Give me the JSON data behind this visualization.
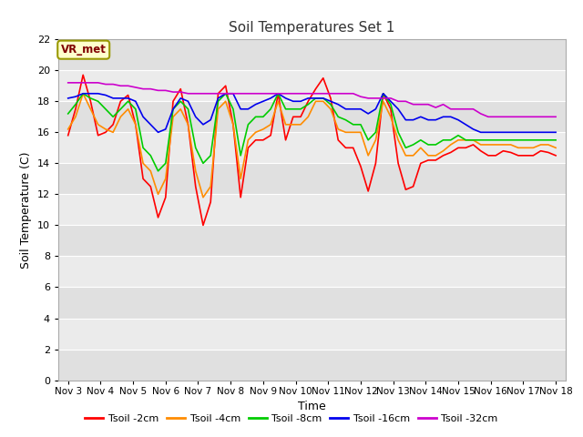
{
  "title": "Soil Temperatures Set 1",
  "xlabel": "Time",
  "ylabel": "Soil Temperature (C)",
  "ylim": [
    0,
    22
  ],
  "yticks": [
    0,
    2,
    4,
    6,
    8,
    10,
    12,
    14,
    16,
    18,
    20,
    22
  ],
  "x_labels": [
    "Nov 3",
    "Nov 4",
    "Nov 5",
    "Nov 6",
    "Nov 7",
    "Nov 8",
    "Nov 9",
    "Nov 10",
    "Nov 11",
    "Nov 12",
    "Nov 13",
    "Nov 14",
    "Nov 15",
    "Nov 16",
    "Nov 17",
    "Nov 18"
  ],
  "annotation_label": "VR_met",
  "annotation_color": "#800000",
  "annotation_bg": "#ffffcc",
  "annotation_edge": "#999900",
  "bg_color": "#e8e8e8",
  "band_light": "#e8e8e8",
  "band_dark": "#d8d8d8",
  "series": [
    {
      "label": "Tsoil -2cm",
      "color": "#ff0000",
      "data": [
        15.8,
        17.5,
        19.7,
        18.0,
        15.8,
        16.0,
        16.5,
        18.0,
        18.4,
        16.5,
        13.0,
        12.5,
        10.5,
        11.8,
        18.0,
        18.8,
        16.5,
        12.5,
        10.0,
        11.5,
        18.5,
        19.0,
        16.5,
        11.8,
        15.0,
        15.5,
        15.5,
        15.8,
        18.5,
        15.5,
        17.0,
        17.0,
        18.0,
        18.8,
        19.5,
        18.2,
        15.5,
        15.0,
        15.0,
        13.8,
        12.2,
        14.0,
        18.5,
        17.5,
        14.0,
        12.3,
        12.5,
        14.0,
        14.2,
        14.2,
        14.5,
        14.7,
        15.0,
        15.0,
        15.2,
        14.8,
        14.5,
        14.5,
        14.8,
        14.7,
        14.5,
        14.5,
        14.5,
        14.8,
        14.7,
        14.5
      ]
    },
    {
      "label": "Tsoil -4cm",
      "color": "#ff8c00",
      "data": [
        16.2,
        17.0,
        18.5,
        17.5,
        16.5,
        16.2,
        16.0,
        17.0,
        17.5,
        16.5,
        14.0,
        13.5,
        12.0,
        13.0,
        17.0,
        17.5,
        16.5,
        13.5,
        11.8,
        12.5,
        17.5,
        18.0,
        16.5,
        13.0,
        15.5,
        16.0,
        16.2,
        16.5,
        18.0,
        16.5,
        16.5,
        16.5,
        17.0,
        18.0,
        18.0,
        17.5,
        16.2,
        16.0,
        16.0,
        16.0,
        14.5,
        15.5,
        18.0,
        17.0,
        15.5,
        14.5,
        14.5,
        15.0,
        14.5,
        14.5,
        14.8,
        15.2,
        15.5,
        15.5,
        15.5,
        15.2,
        15.2,
        15.2,
        15.2,
        15.2,
        15.0,
        15.0,
        15.0,
        15.2,
        15.2,
        15.0
      ]
    },
    {
      "label": "Tsoil -8cm",
      "color": "#00cc00",
      "data": [
        17.2,
        17.8,
        18.5,
        18.2,
        18.0,
        17.5,
        17.0,
        17.5,
        18.0,
        17.5,
        15.0,
        14.5,
        13.5,
        14.0,
        17.5,
        18.0,
        17.5,
        15.0,
        14.0,
        14.5,
        18.0,
        18.5,
        17.5,
        14.5,
        16.5,
        17.0,
        17.0,
        17.5,
        18.5,
        17.5,
        17.5,
        17.5,
        17.8,
        18.2,
        18.2,
        17.8,
        17.0,
        16.8,
        16.5,
        16.5,
        15.5,
        16.0,
        18.5,
        17.8,
        16.0,
        15.0,
        15.2,
        15.5,
        15.2,
        15.2,
        15.5,
        15.5,
        15.8,
        15.5,
        15.5,
        15.5,
        15.5,
        15.5,
        15.5,
        15.5,
        15.5,
        15.5,
        15.5,
        15.5,
        15.5,
        15.5
      ]
    },
    {
      "label": "Tsoil -16cm",
      "color": "#0000ee",
      "data": [
        18.2,
        18.3,
        18.5,
        18.5,
        18.5,
        18.4,
        18.2,
        18.2,
        18.2,
        18.0,
        17.0,
        16.5,
        16.0,
        16.2,
        17.5,
        18.2,
        18.0,
        17.0,
        16.5,
        16.8,
        18.2,
        18.5,
        18.5,
        17.5,
        17.5,
        17.8,
        18.0,
        18.2,
        18.5,
        18.2,
        18.0,
        18.0,
        18.2,
        18.2,
        18.2,
        18.0,
        17.8,
        17.5,
        17.5,
        17.5,
        17.2,
        17.5,
        18.5,
        18.0,
        17.5,
        16.8,
        16.8,
        17.0,
        16.8,
        16.8,
        17.0,
        17.0,
        16.8,
        16.5,
        16.2,
        16.0,
        16.0,
        16.0,
        16.0,
        16.0,
        16.0,
        16.0,
        16.0,
        16.0,
        16.0,
        16.0
      ]
    },
    {
      "label": "Tsoil -32cm",
      "color": "#cc00cc",
      "data": [
        19.2,
        19.2,
        19.2,
        19.2,
        19.2,
        19.1,
        19.1,
        19.0,
        19.0,
        18.9,
        18.8,
        18.8,
        18.7,
        18.7,
        18.6,
        18.6,
        18.5,
        18.5,
        18.5,
        18.5,
        18.5,
        18.5,
        18.5,
        18.5,
        18.5,
        18.5,
        18.5,
        18.5,
        18.5,
        18.5,
        18.5,
        18.5,
        18.5,
        18.5,
        18.5,
        18.5,
        18.5,
        18.5,
        18.5,
        18.3,
        18.2,
        18.2,
        18.2,
        18.2,
        18.0,
        18.0,
        17.8,
        17.8,
        17.8,
        17.6,
        17.8,
        17.5,
        17.5,
        17.5,
        17.5,
        17.2,
        17.0,
        17.0,
        17.0,
        17.0,
        17.0,
        17.0,
        17.0,
        17.0,
        17.0,
        17.0
      ]
    }
  ]
}
